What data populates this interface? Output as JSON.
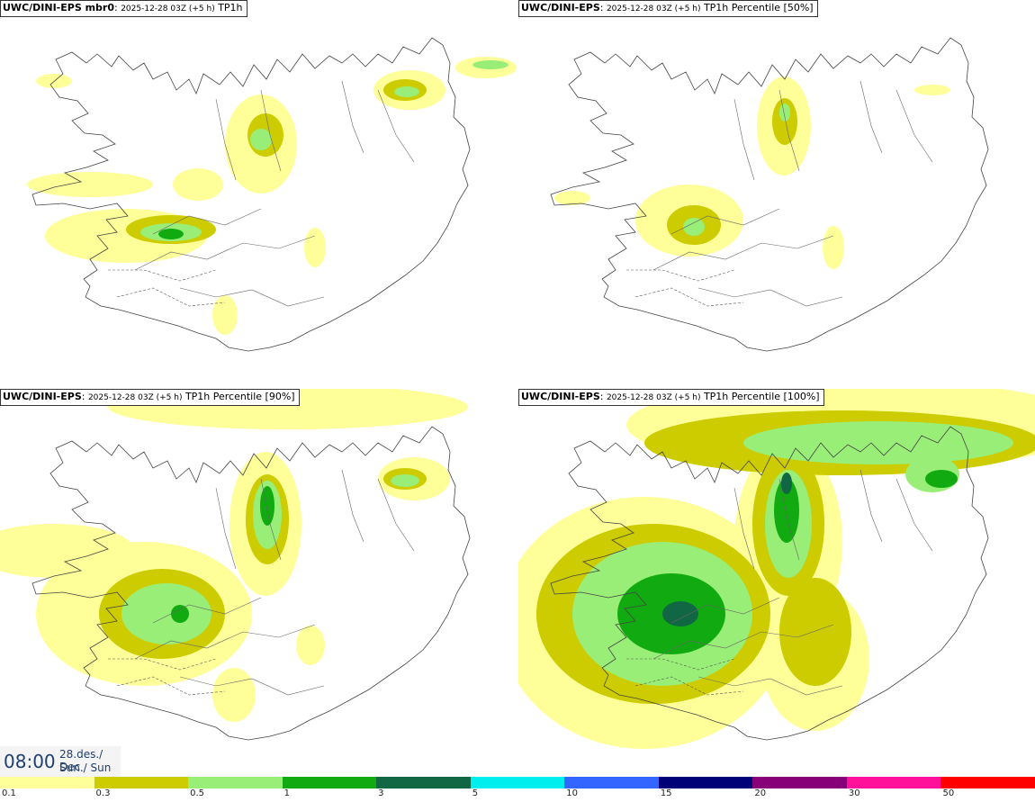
{
  "panels": [
    {
      "model": "UWC/DINI-EPS mbr0",
      "stamp": "2025-12-28 03Z (+5 h)",
      "field": "TP1h"
    },
    {
      "model": "UWC/DINI-EPS",
      "stamp": "2025-12-28 03Z (+5 h)",
      "field": "TP1h Percentile [50%]"
    },
    {
      "model": "UWC/DINI-EPS",
      "stamp": "2025-12-28 03Z (+5 h)",
      "field": "TP1h Percentile [90%]"
    },
    {
      "model": "UWC/DINI-EPS",
      "stamp": "2025-12-28 03Z (+5 h)",
      "field": "TP1h Percentile [100%]"
    }
  ],
  "valid_time": {
    "time": "08:00",
    "date_line1": "28.des./ Dec",
    "date_line2": "Sun./ Sun"
  },
  "legend": {
    "labels": [
      "0.1",
      "0.3",
      "0.5",
      "1",
      "3",
      "5",
      "10",
      "15",
      "20",
      "30",
      "50"
    ],
    "colors": [
      "#ffff99",
      "#cccc00",
      "#99ee77",
      "#11aa11",
      "#116644",
      "#00eeee",
      "#3366ff",
      "#000077",
      "#880077",
      "#ff1199",
      "#ff0000"
    ]
  }
}
